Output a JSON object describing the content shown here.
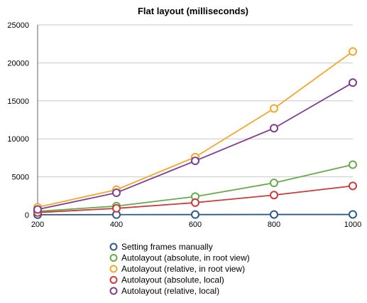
{
  "chart_data": {
    "type": "line",
    "title": "Flat layout (milliseconds)",
    "xlabel": "",
    "ylabel": "",
    "x": [
      200,
      400,
      600,
      800,
      1000
    ],
    "xlim": [
      200,
      1000
    ],
    "ylim": [
      0,
      25000
    ],
    "x_ticks": [
      "200",
      "400",
      "600",
      "800",
      "1000"
    ],
    "y_ticks": [
      "0",
      "5000",
      "10000",
      "15000",
      "20000",
      "25000"
    ],
    "y_tick_values": [
      0,
      5000,
      10000,
      15000,
      20000,
      25000
    ],
    "grid": "horizontal",
    "legend_position": "bottom",
    "series": [
      {
        "name": "Setting frames manually",
        "color": "#2e5a87",
        "values": [
          10,
          20,
          30,
          40,
          50
        ]
      },
      {
        "name": "Autolayout (absolute, in root view)",
        "color": "#6aa84f",
        "values": [
          450,
          1150,
          2400,
          4200,
          6600
        ]
      },
      {
        "name": "Autolayout (relative, in root view)",
        "color": "#f0a830",
        "values": [
          1000,
          3300,
          7600,
          14000,
          21500
        ]
      },
      {
        "name": "Autolayout (absolute, local)",
        "color": "#cc3b3b",
        "values": [
          300,
          850,
          1600,
          2600,
          3800
        ]
      },
      {
        "name": "Autolayout (relative, local)",
        "color": "#7d3f8f",
        "values": [
          700,
          2900,
          7100,
          11400,
          17400
        ]
      }
    ]
  }
}
